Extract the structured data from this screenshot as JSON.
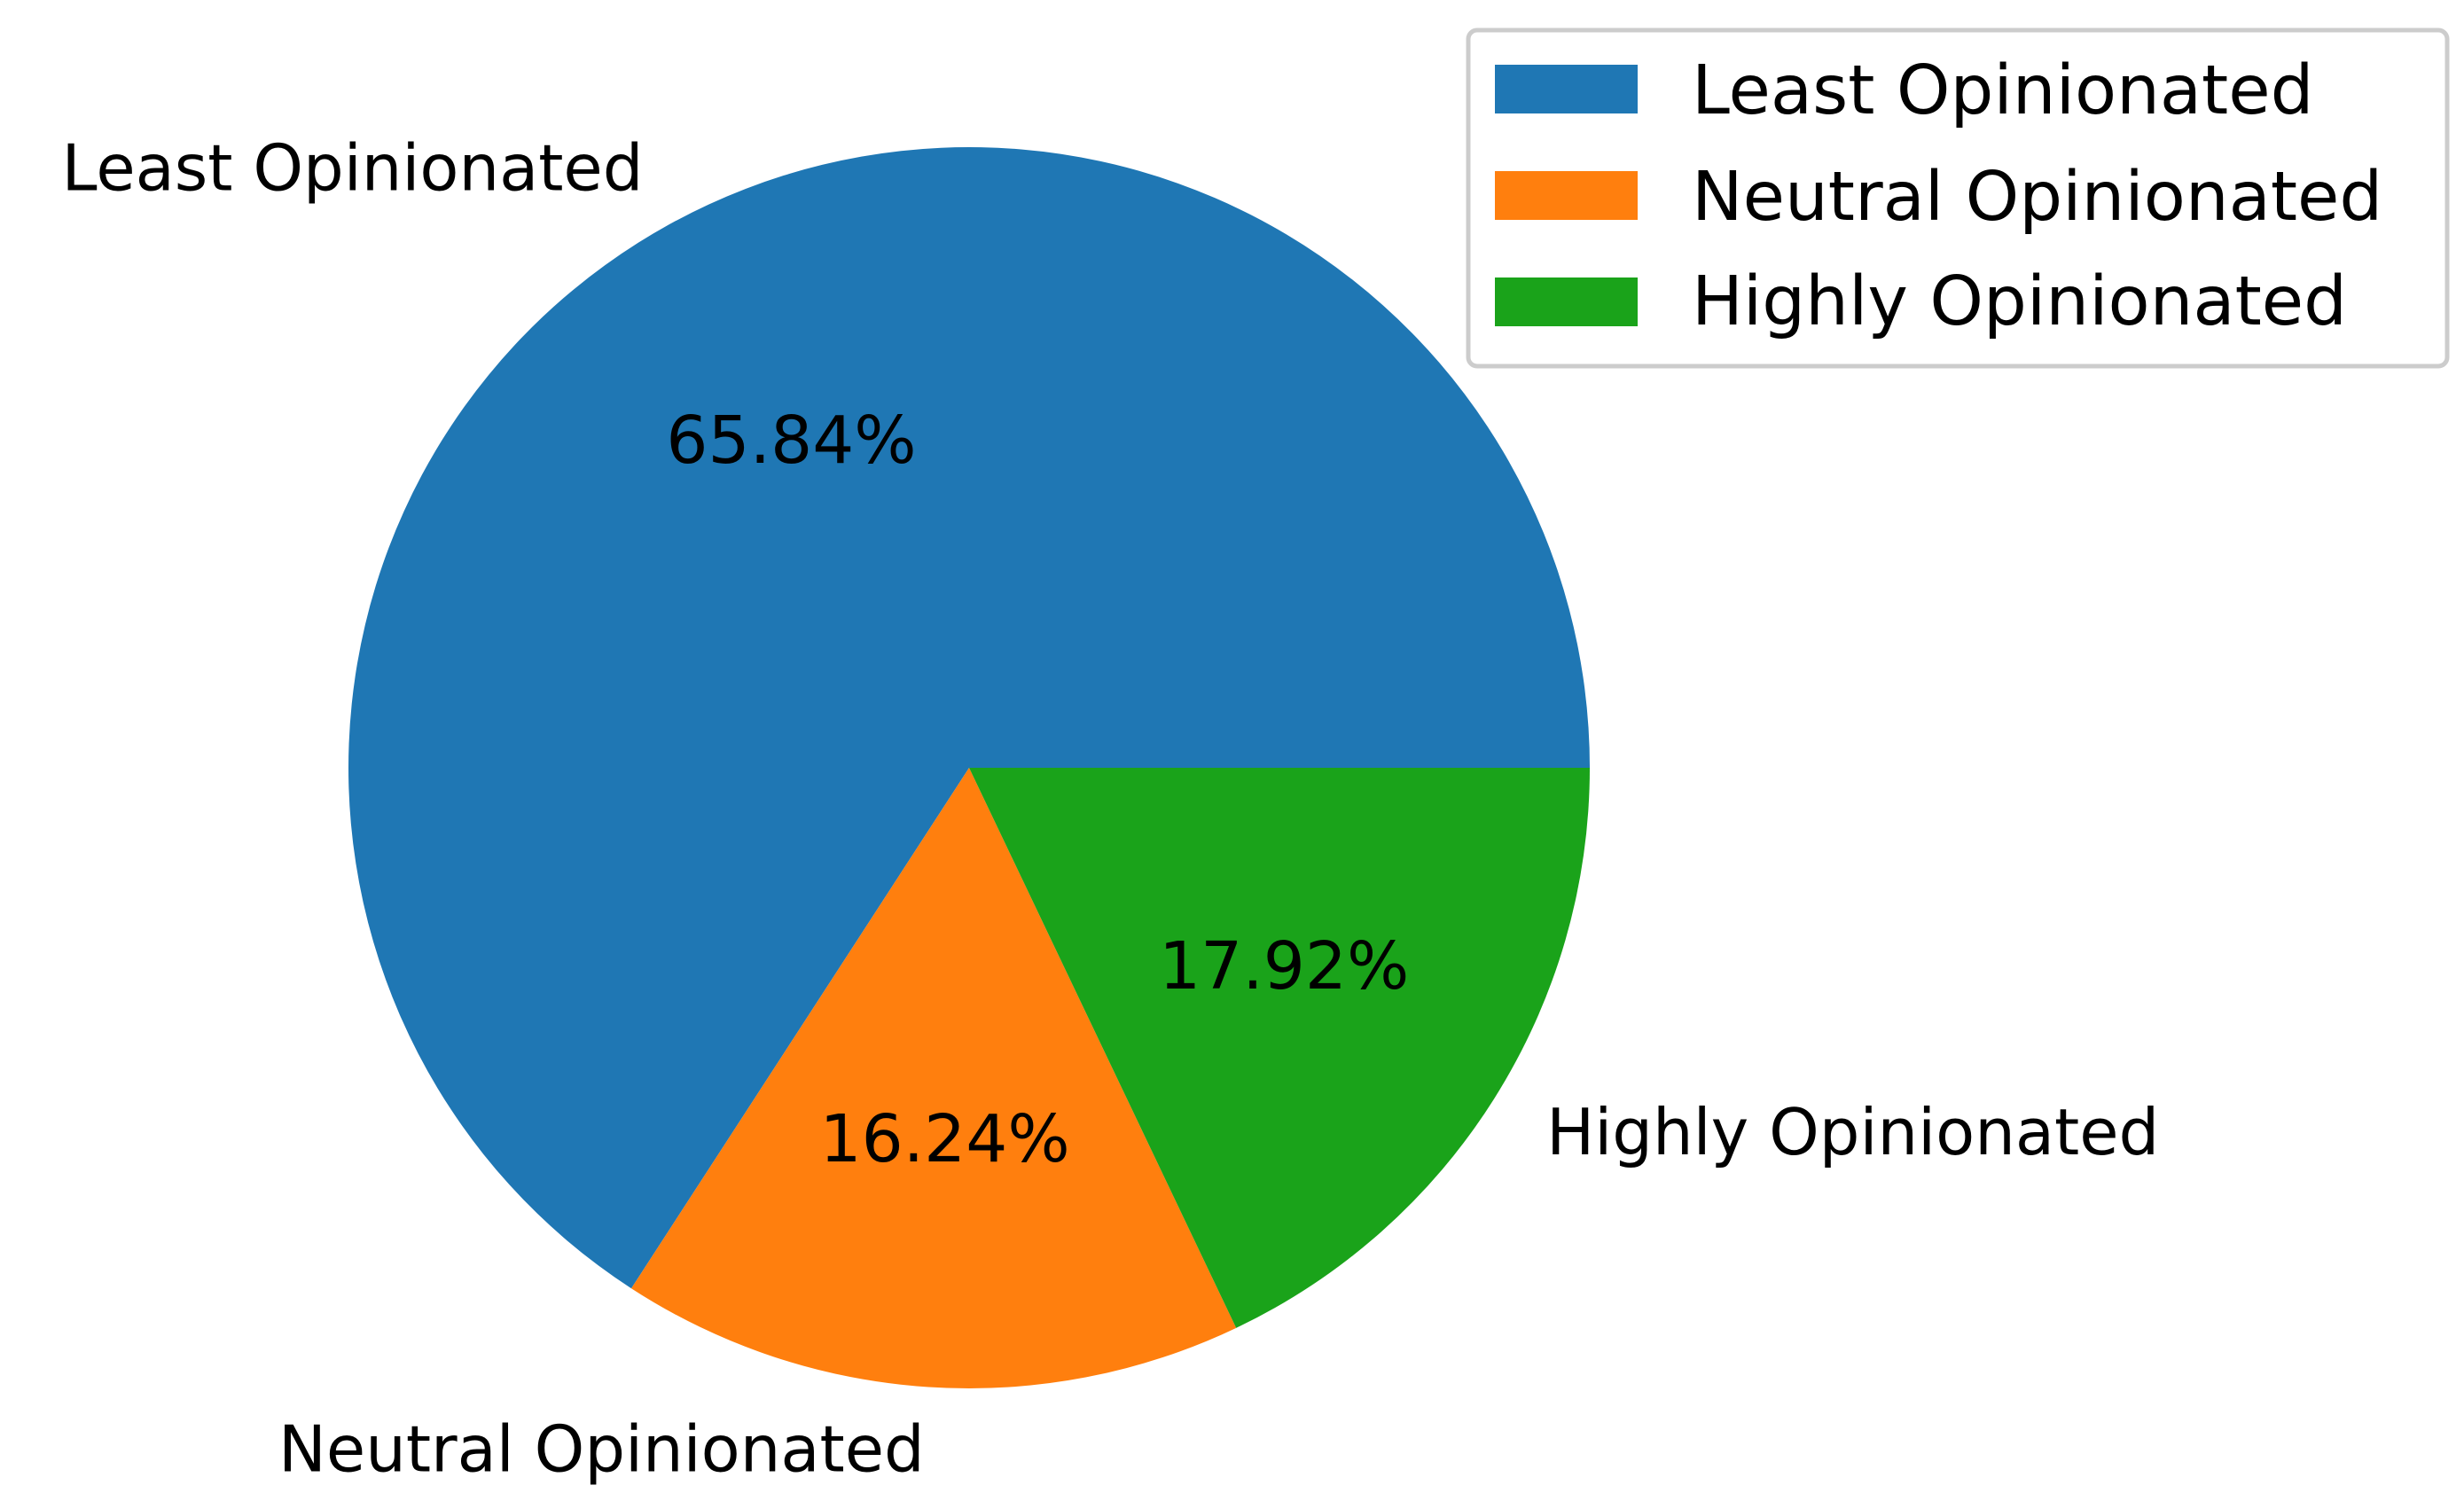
{
  "chart_data": {
    "type": "pie",
    "title": "",
    "slices": [
      {
        "label": "Least Opinionated",
        "value": 65.84,
        "pct_text": "65.84%",
        "color": "#1f77b4"
      },
      {
        "label": "Neutral Opinionated",
        "value": 16.24,
        "pct_text": "16.24%",
        "color": "#ff7f0e"
      },
      {
        "label": "Highly Opinionated",
        "value": 17.92,
        "pct_text": "17.92%",
        "color": "#1aa31a"
      }
    ],
    "start_angle_deg": 0,
    "direction": "counterclockwise",
    "legend": {
      "placement": "top-right",
      "entries": [
        "Least Opinionated",
        "Neutral Opinionated",
        "Highly Opinionated"
      ]
    }
  }
}
